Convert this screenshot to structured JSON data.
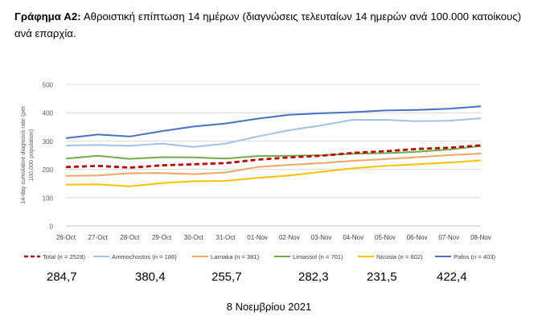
{
  "caption": {
    "label": "Γράφημα Α2:",
    "text": "Αθροιστική επίπτωση 14 ημέρων (διαγνώσεις τελευταίων 14 ημερών ανά 100.000 κατοίκους) ανά επαρχία."
  },
  "chart_data": {
    "type": "line",
    "ylabel": "14-day cumulative diagnosis rate (per 100,000 population)",
    "ylim": [
      0,
      500
    ],
    "yticks": [
      "0",
      "100",
      "200",
      "300",
      "400",
      "500"
    ],
    "categories": [
      "26-Oct",
      "27-Oct",
      "28-Oct",
      "29-Oct",
      "30-Oct",
      "31-Oct",
      "01-Nov",
      "02-Nov",
      "03-Nov",
      "04-Nov",
      "05-Nov",
      "06-Nov",
      "07-Nov",
      "08-Nov"
    ],
    "grid": true,
    "legend": "bottom",
    "series": [
      {
        "name": "Total (n = 2528)",
        "color": "#c00000",
        "dashed": true,
        "values": [
          208,
          212,
          206,
          214,
          218,
          222,
          234,
          242,
          248,
          258,
          264,
          272,
          276,
          284.7
        ]
      },
      {
        "name": "Ammochostos (n = 186)",
        "color": "#9dc3e6",
        "dashed": false,
        "values": [
          284,
          286,
          283,
          291,
          279,
          291,
          316,
          338,
          355,
          375,
          375,
          370,
          372,
          380.4
        ]
      },
      {
        "name": "Larnaka (n = 381)",
        "color": "#f4a460",
        "dashed": false,
        "values": [
          177,
          178,
          186,
          187,
          183,
          189,
          208,
          216,
          222,
          230,
          236,
          243,
          250,
          255.7
        ]
      },
      {
        "name": "Limassol (n = 701)",
        "color": "#70ad47",
        "dashed": false,
        "values": [
          238,
          248,
          237,
          243,
          242,
          238,
          247,
          248,
          250,
          255,
          257,
          262,
          270,
          282.3
        ]
      },
      {
        "name": "Nicosia (n = 802)",
        "color": "#ffc000",
        "dashed": false,
        "values": [
          146,
          147,
          140,
          151,
          158,
          159,
          170,
          178,
          191,
          204,
          212,
          218,
          224,
          231.5
        ]
      },
      {
        "name": "Pafos (n = 403)",
        "color": "#4472c4",
        "dashed": false,
        "values": [
          310,
          323,
          316,
          335,
          351,
          362,
          379,
          393,
          398,
          402,
          408,
          410,
          414,
          422.4
        ]
      }
    ]
  },
  "summary_values": [
    "284,7",
    "380,4",
    "255,7",
    "282,3",
    "231,5",
    "422,4"
  ],
  "date": "8 Νοεμβρίου 2021"
}
